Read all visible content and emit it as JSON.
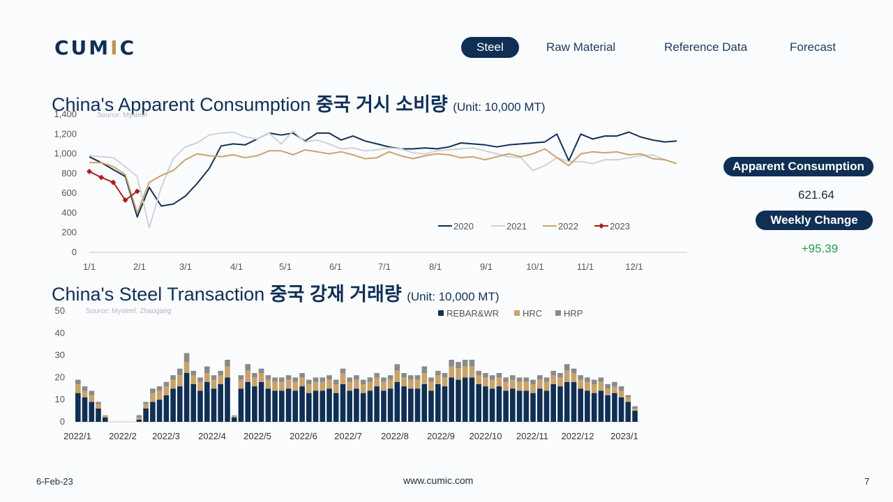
{
  "brand": {
    "logo_pre": "CUM",
    "logo_v": "I",
    "logo_post": "C"
  },
  "nav": {
    "steel": "Steel",
    "raw": "Raw Material",
    "ref": "Reference Data",
    "forecast": "Forecast"
  },
  "chart1": {
    "title_en": "China's Apparent Consumption ",
    "title_ko": "중국 거시 소비량",
    "unit": "(Unit: 10,000 MT)",
    "source": "Source: Mysteel"
  },
  "chart2": {
    "title_en": "China's Steel Transaction ",
    "title_ko": "중국 강재 거래량",
    "unit": "(Unit: 10,000 MT)",
    "source": "Source: Mysteel, Zhaogang"
  },
  "kpis": {
    "ac_label": "Apparent Consumption",
    "ac_value": "621.64",
    "wc_label": "Weekly Change",
    "wc_value": "+95.39"
  },
  "footer": {
    "date": "6-Feb-23",
    "url": "www.cumic.com",
    "page": "7"
  },
  "colors": {
    "navy": "#0f2f54",
    "gold": "#c9a36b",
    "gray": "#cdd2d8",
    "red": "#b01c1c",
    "hrp": "#8a8a8a",
    "green": "#1e9e4a"
  },
  "chart_data": [
    {
      "type": "line",
      "title": "China's Apparent Consumption 중국 거시 소비량 (Unit: 10,000 MT)",
      "x_ticks": [
        "1/1",
        "2/1",
        "3/1",
        "4/1",
        "5/1",
        "6/1",
        "7/1",
        "8/1",
        "9/1",
        "10/1",
        "11/1",
        "12/1"
      ],
      "y_ticks": [
        "0",
        "200",
        "400",
        "600",
        "800",
        "1,000",
        "1,200",
        "1,400"
      ],
      "ylim": [
        0,
        1400
      ],
      "legend": "bottom-right",
      "series": [
        {
          "name": "2020",
          "color": "#0f2f54",
          "values": [
            970,
            910,
            840,
            770,
            360,
            660,
            470,
            490,
            570,
            700,
            850,
            1080,
            1100,
            1090,
            1150,
            1210,
            1190,
            1210,
            1130,
            1210,
            1210,
            1140,
            1180,
            1130,
            1100,
            1070,
            1050,
            1050,
            1060,
            1050,
            1070,
            1110,
            1100,
            1090,
            1070,
            1090,
            1100,
            1110,
            1120,
            1200,
            930,
            1200,
            1150,
            1180,
            1180,
            1220,
            1170,
            1140,
            1120,
            1130
          ]
        },
        {
          "name": "2021",
          "color": "#cdd2d8",
          "values": [
            980,
            970,
            960,
            870,
            770,
            250,
            660,
            950,
            1070,
            1110,
            1190,
            1210,
            1220,
            1170,
            1150,
            1210,
            1100,
            1230,
            1120,
            1140,
            1100,
            1050,
            1060,
            1030,
            1040,
            1060,
            1050,
            1010,
            1000,
            1030,
            1040,
            1050,
            1060,
            1030,
            1000,
            970,
            960,
            830,
            880,
            960,
            920,
            920,
            900,
            940,
            940,
            960,
            980,
            990,
            940,
            900
          ]
        },
        {
          "name": "2022",
          "color": "#c9a36b",
          "values": [
            910,
            910,
            870,
            790,
            400,
            710,
            780,
            830,
            940,
            1000,
            980,
            970,
            990,
            960,
            980,
            1030,
            1030,
            990,
            1040,
            1020,
            1000,
            1020,
            990,
            950,
            960,
            1020,
            980,
            950,
            980,
            1000,
            990,
            960,
            970,
            940,
            970,
            1000,
            970,
            1000,
            1050,
            960,
            880,
            1000,
            1020,
            1010,
            1020,
            990,
            1000,
            950,
            940,
            900
          ]
        },
        {
          "name": "2023",
          "color": "#b01c1c",
          "values": [
            820,
            760,
            710,
            530,
            620
          ]
        }
      ]
    },
    {
      "type": "bar",
      "stacked": true,
      "title": "China's Steel Transaction 중국 강재 거래량 (Unit: 10,000 MT)",
      "x_ticks": [
        "2022/1",
        "2022/2",
        "2022/3",
        "2022/4",
        "2022/5",
        "2022/6",
        "2022/7",
        "2022/8",
        "2022/9",
        "2022/10",
        "2022/11",
        "2022/12",
        "2023/1"
      ],
      "y_ticks": [
        "0",
        "10",
        "20",
        "30",
        "40",
        "50"
      ],
      "ylim": [
        0,
        50
      ],
      "legend": "top-right",
      "series": [
        {
          "name": "REBAR&WR",
          "color": "#0f2f54",
          "values": [
            13,
            11,
            9,
            6,
            2,
            0,
            0,
            0,
            0,
            1,
            6,
            9,
            10,
            12,
            15,
            16,
            22,
            17,
            14,
            18,
            15,
            17,
            20,
            2,
            15,
            18,
            16,
            18,
            15,
            14,
            14,
            15,
            14,
            16,
            13,
            14,
            14,
            15,
            13,
            17,
            14,
            15,
            13,
            14,
            16,
            14,
            15,
            18,
            16,
            15,
            15,
            17,
            14,
            17,
            16,
            20,
            19,
            20,
            20,
            17,
            16,
            15,
            16,
            14,
            15,
            14,
            14,
            13,
            15,
            14,
            17,
            16,
            18,
            18,
            15,
            14,
            13,
            14,
            12,
            13,
            11,
            9,
            5
          ]
        },
        {
          "name": "HRC",
          "color": "#c9a36b",
          "values": [
            4,
            3,
            3,
            2,
            1,
            0,
            0,
            0,
            0,
            1,
            2,
            4,
            4,
            4,
            4,
            5,
            5,
            4,
            4,
            4,
            4,
            4,
            5,
            1,
            4,
            5,
            4,
            4,
            4,
            4,
            4,
            4,
            4,
            4,
            4,
            4,
            4,
            4,
            4,
            5,
            4,
            4,
            4,
            4,
            4,
            4,
            4,
            5,
            4,
            4,
            4,
            5,
            4,
            4,
            4,
            5,
            5,
            5,
            5,
            4,
            4,
            4,
            4,
            4,
            4,
            4,
            4,
            4,
            4,
            4,
            4,
            4,
            5,
            4,
            4,
            4,
            4,
            4,
            3,
            3,
            3,
            2,
            1
          ]
        },
        {
          "name": "HRP",
          "color": "#8a8a8a",
          "values": [
            2,
            2,
            2,
            1,
            0,
            0,
            0,
            0,
            0,
            1,
            1,
            2,
            2,
            2,
            2,
            3,
            4,
            2,
            2,
            3,
            2,
            2,
            3,
            0,
            2,
            3,
            2,
            2,
            2,
            2,
            2,
            2,
            2,
            2,
            2,
            2,
            2,
            2,
            2,
            2,
            2,
            2,
            2,
            2,
            2,
            2,
            2,
            3,
            2,
            2,
            2,
            3,
            2,
            2,
            2,
            3,
            3,
            3,
            3,
            2,
            2,
            2,
            2,
            2,
            2,
            2,
            2,
            2,
            2,
            2,
            2,
            2,
            3,
            2,
            2,
            2,
            2,
            2,
            2,
            2,
            2,
            1,
            1
          ]
        }
      ]
    }
  ]
}
